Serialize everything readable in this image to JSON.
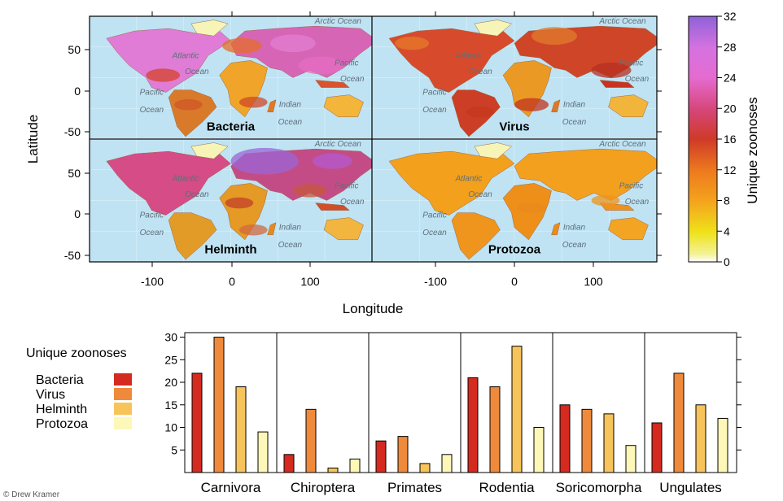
{
  "maps": {
    "panels": [
      {
        "name": "Bacteria",
        "scheme": "bacteria"
      },
      {
        "name": "Virus",
        "scheme": "virus"
      },
      {
        "name": "Helminth",
        "scheme": "helminth"
      },
      {
        "name": "Protozoa",
        "scheme": "protozoa"
      }
    ],
    "ocean_labels": [
      "Arctic Ocean",
      "Atlantic",
      "Ocean",
      "Pacific",
      "Ocean",
      "Indian",
      "Ocean",
      "Pacific",
      "Ocean"
    ],
    "xlabel": "Longitude",
    "ylabel": "Latitude",
    "x_ticks": [
      "-100",
      "0",
      "100"
    ],
    "y_ticks": [
      "50",
      "0",
      "-50"
    ],
    "colorbar": {
      "title": "Unique zoonoses",
      "ticks": [
        "32",
        "28",
        "24",
        "20",
        "16",
        "12",
        "8",
        "4",
        "0"
      ],
      "range": [
        0,
        32
      ]
    }
  },
  "chart_data": {
    "type": "bar",
    "title": "",
    "legend_title": "Unique zoonoses",
    "categories": [
      "Carnivora",
      "Chiroptera",
      "Primates",
      "Rodentia",
      "Soricomorpha",
      "Ungulates"
    ],
    "series": [
      {
        "name": "Bacteria",
        "color": "#d42a1f",
        "values": [
          22,
          4,
          7,
          21,
          15,
          11
        ]
      },
      {
        "name": "Virus",
        "color": "#ef8a3c",
        "values": [
          30,
          14,
          8,
          19,
          14,
          22
        ]
      },
      {
        "name": "Helminth",
        "color": "#f7c45c",
        "values": [
          19,
          1,
          2,
          28,
          13,
          15
        ]
      },
      {
        "name": "Protozoa",
        "color": "#fdf7b8",
        "values": [
          9,
          3,
          4,
          10,
          6,
          12
        ]
      }
    ],
    "y_ticks": [
      "5",
      "10",
      "15",
      "20",
      "25",
      "30"
    ],
    "ylim": [
      0,
      31
    ]
  },
  "credit": "© Drew Kramer"
}
